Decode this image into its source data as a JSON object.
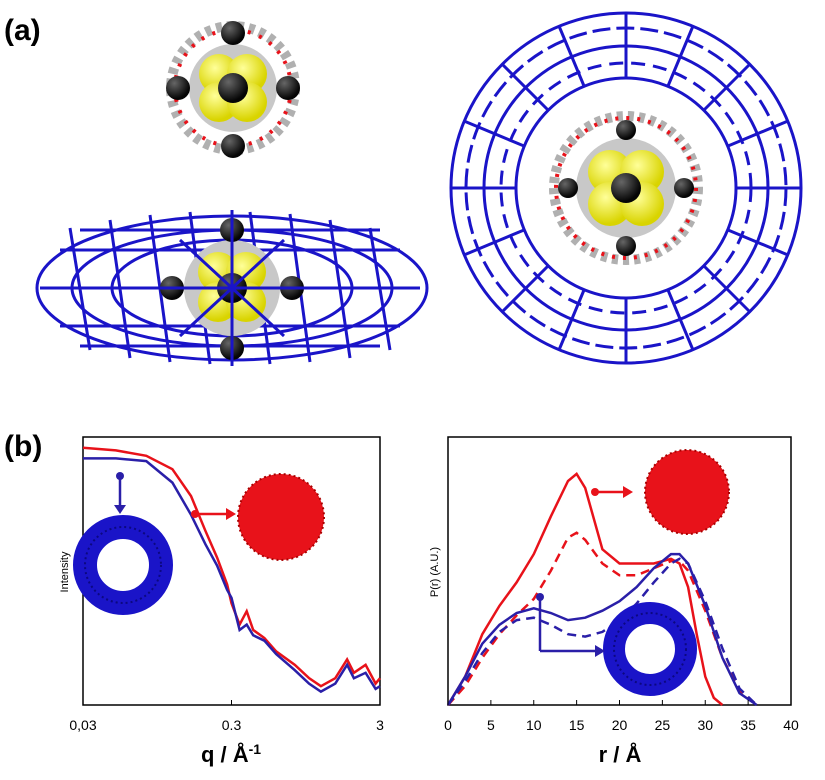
{
  "figure": {
    "panel_a_label": "(a)",
    "panel_b_label": "(b)"
  },
  "colors": {
    "red": "#e8121a",
    "blue": "#2a1fa8",
    "molecule_blue": "#1a14c8"
  },
  "chart_data": [
    {
      "type": "line",
      "title": "",
      "xlabel": "q / Å",
      "xlabel_superscript": "-1",
      "ylabel": "Intensity",
      "xscale": "log",
      "xlim": [
        0.03,
        3
      ],
      "x_tick_labels": [
        "0,03",
        "0.3",
        "3"
      ],
      "grid": false,
      "series": [
        {
          "color": "#e8121a",
          "x": [
            0.03,
            0.05,
            0.08,
            0.12,
            0.16,
            0.2,
            0.24,
            0.28,
            0.3,
            0.34,
            0.38,
            0.42,
            0.5,
            0.6,
            0.8,
            1.0,
            1.2,
            1.5,
            1.8,
            2.0,
            2.4,
            2.8,
            3.0
          ],
          "y": [
            0.96,
            0.95,
            0.93,
            0.88,
            0.78,
            0.65,
            0.55,
            0.45,
            0.38,
            0.3,
            0.35,
            0.28,
            0.25,
            0.2,
            0.15,
            0.1,
            0.07,
            0.1,
            0.17,
            0.12,
            0.15,
            0.08,
            0.1
          ]
        },
        {
          "color": "#2a1fa8",
          "x": [
            0.03,
            0.05,
            0.08,
            0.12,
            0.16,
            0.2,
            0.24,
            0.28,
            0.3,
            0.34,
            0.38,
            0.42,
            0.5,
            0.6,
            0.8,
            1.0,
            1.2,
            1.5,
            1.8,
            2.0,
            2.4,
            2.8,
            3.0
          ],
          "y": [
            0.92,
            0.92,
            0.91,
            0.83,
            0.71,
            0.6,
            0.52,
            0.43,
            0.4,
            0.28,
            0.3,
            0.26,
            0.24,
            0.19,
            0.13,
            0.08,
            0.05,
            0.08,
            0.15,
            0.1,
            0.12,
            0.06,
            0.07
          ]
        }
      ]
    },
    {
      "type": "line",
      "title": "",
      "xlabel": "r / Å",
      "ylabel": "P(r) (A.U.)",
      "xlim": [
        0,
        40
      ],
      "x_ticks": [
        0,
        5,
        10,
        15,
        20,
        25,
        30,
        35,
        40
      ],
      "grid": false,
      "series": [
        {
          "color": "#e8121a",
          "style": "solid",
          "x": [
            0,
            2,
            4,
            6,
            8,
            10,
            12,
            14,
            15,
            16,
            18,
            20,
            22,
            24,
            26,
            27,
            28,
            29,
            30,
            31,
            32
          ],
          "y": [
            0,
            0.12,
            0.3,
            0.42,
            0.52,
            0.64,
            0.8,
            0.95,
            0.98,
            0.92,
            0.66,
            0.6,
            0.6,
            0.6,
            0.62,
            0.6,
            0.5,
            0.3,
            0.12,
            0.03,
            0
          ]
        },
        {
          "color": "#e8121a",
          "style": "dashed",
          "x": [
            0,
            2,
            4,
            6,
            8,
            10,
            12,
            14,
            15,
            16,
            18,
            20,
            22,
            24,
            26,
            27,
            28,
            30,
            32,
            34,
            36
          ],
          "y": [
            0,
            0.08,
            0.2,
            0.3,
            0.38,
            0.45,
            0.57,
            0.71,
            0.73,
            0.7,
            0.6,
            0.55,
            0.55,
            0.58,
            0.61,
            0.61,
            0.57,
            0.4,
            0.2,
            0.06,
            0
          ]
        },
        {
          "color": "#2a1fa8",
          "style": "solid",
          "x": [
            0,
            2,
            4,
            6,
            8,
            10,
            12,
            14,
            16,
            18,
            20,
            22,
            24,
            26,
            27,
            28,
            30,
            32,
            34,
            36
          ],
          "y": [
            0,
            0.12,
            0.26,
            0.34,
            0.39,
            0.41,
            0.39,
            0.36,
            0.37,
            0.4,
            0.44,
            0.5,
            0.58,
            0.64,
            0.64,
            0.6,
            0.42,
            0.2,
            0.05,
            0
          ]
        },
        {
          "color": "#2a1fa8",
          "style": "dashed",
          "x": [
            0,
            2,
            4,
            6,
            8,
            10,
            12,
            14,
            16,
            18,
            20,
            22,
            24,
            26,
            27,
            28,
            30,
            32,
            34,
            36
          ],
          "y": [
            0,
            0.1,
            0.22,
            0.31,
            0.36,
            0.37,
            0.34,
            0.3,
            0.29,
            0.31,
            0.36,
            0.43,
            0.52,
            0.6,
            0.62,
            0.6,
            0.44,
            0.24,
            0.07,
            0
          ]
        }
      ]
    }
  ]
}
